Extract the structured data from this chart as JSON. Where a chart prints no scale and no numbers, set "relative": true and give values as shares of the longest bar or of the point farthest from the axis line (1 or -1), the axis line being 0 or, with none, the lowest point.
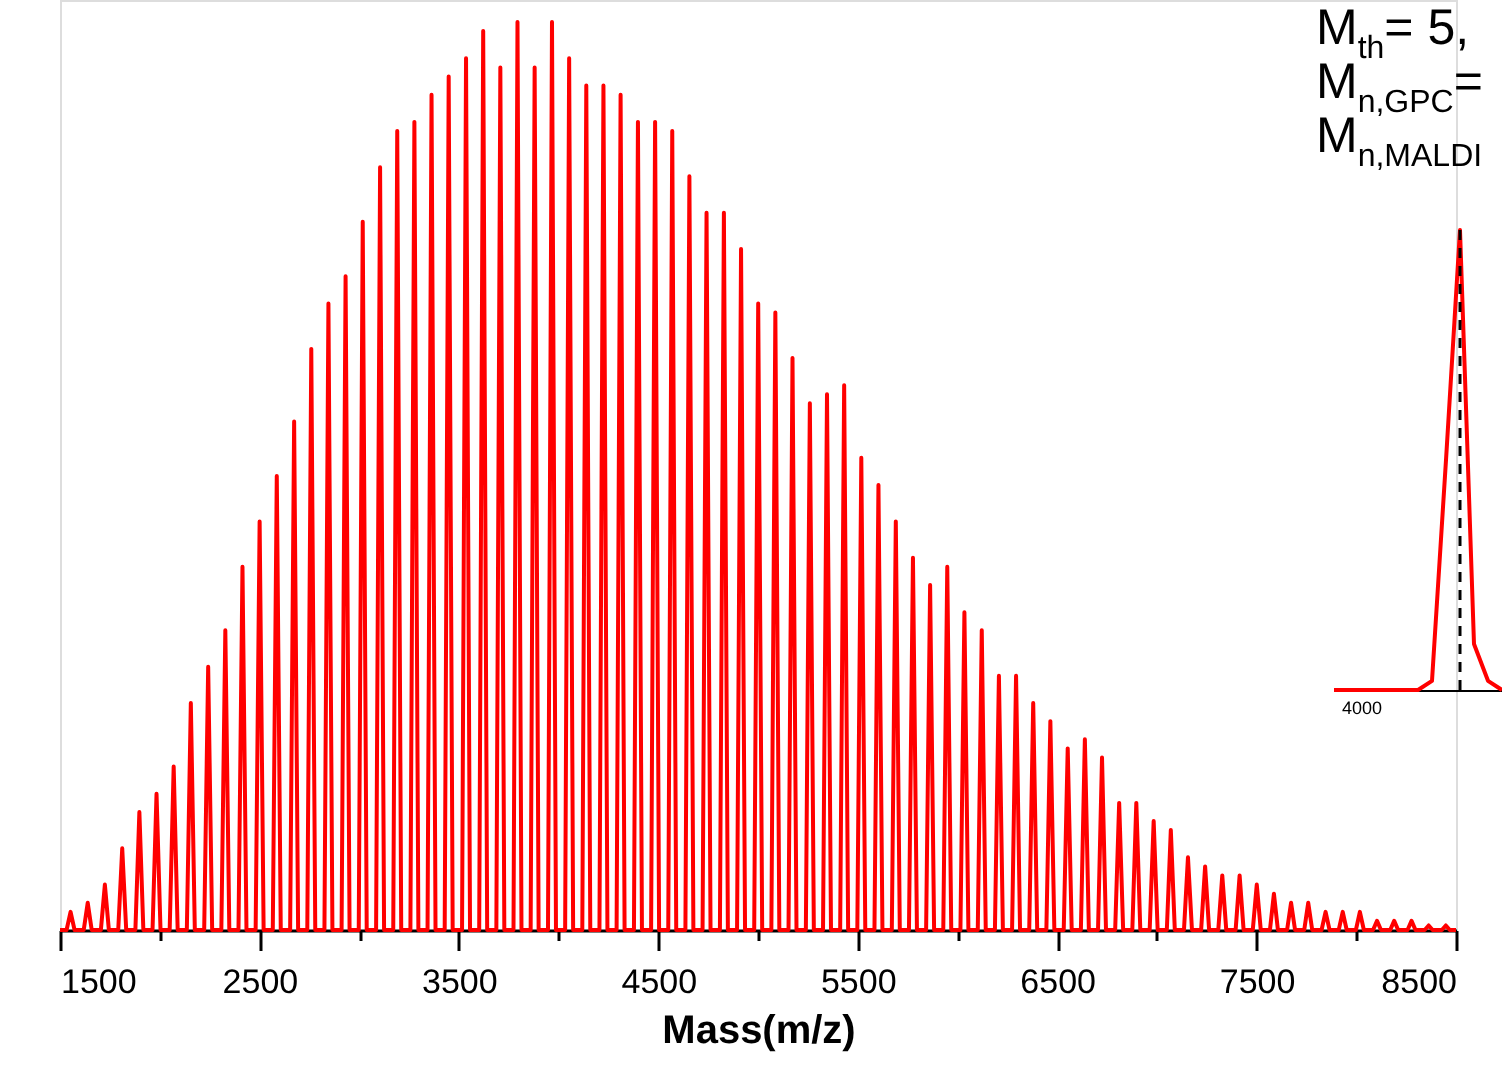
{
  "chart_data": [
    {
      "type": "line",
      "relative": true,
      "color": "#ff0000",
      "xlabel": "Mass(m/z)",
      "grid": false,
      "xlim": [
        1500,
        8500
      ],
      "xticks": [
        1500,
        {
          "value": 2000,
          "label": null
        },
        2500,
        {
          "value": 3000,
          "label": null
        },
        3500,
        {
          "value": 4000,
          "label": null
        },
        4500,
        {
          "value": 5000,
          "label": null
        },
        5500,
        {
          "value": 6000,
          "label": null
        },
        6500,
        {
          "value": 7000,
          "label": null
        },
        7500,
        {
          "value": 8000,
          "label": null
        },
        8500
      ],
      "annotations": [
        "M$_{th}$= 5,",
        "M$_{n,GPC}$=",
        "M$_{n,MALDI}$"
      ],
      "x": [
        1500,
        1533,
        1553,
        1573,
        1619,
        1639,
        1659,
        1705,
        1725,
        1745,
        1792,
        1812,
        1832,
        1878,
        1898,
        1918,
        1964,
        1984,
        2004,
        2050,
        2070,
        2090,
        2136,
        2156,
        2176,
        2223,
        2243,
        2263,
        2309,
        2329,
        2349,
        2395,
        2415,
        2435,
        2481,
        2501,
        2521,
        2567,
        2587,
        2607,
        2654,
        2674,
        2694,
        2740,
        2760,
        2780,
        2826,
        2846,
        2866,
        2912,
        2932,
        2952,
        2998,
        3018,
        3038,
        3085,
        3105,
        3125,
        3171,
        3191,
        3211,
        3257,
        3277,
        3297,
        3343,
        3363,
        3383,
        3429,
        3449,
        3469,
        3516,
        3536,
        3556,
        3602,
        3622,
        3642,
        3688,
        3708,
        3728,
        3774,
        3794,
        3814,
        3860,
        3880,
        3900,
        3947,
        3967,
        3987,
        4033,
        4053,
        4073,
        4119,
        4139,
        4159,
        4205,
        4225,
        4245,
        4291,
        4311,
        4331,
        4378,
        4398,
        4418,
        4464,
        4484,
        4504,
        4550,
        4570,
        4590,
        4636,
        4656,
        4676,
        4722,
        4742,
        4762,
        4809,
        4829,
        4849,
        4895,
        4915,
        4935,
        4981,
        5001,
        5021,
        5067,
        5087,
        5107,
        5153,
        5173,
        5193,
        5240,
        5260,
        5280,
        5326,
        5346,
        5366,
        5412,
        5432,
        5452,
        5498,
        5518,
        5538,
        5584,
        5604,
        5624,
        5671,
        5691,
        5711,
        5757,
        5777,
        5797,
        5843,
        5863,
        5883,
        5929,
        5949,
        5969,
        6015,
        6035,
        6055,
        6102,
        6122,
        6142,
        6188,
        6208,
        6228,
        6274,
        6294,
        6314,
        6360,
        6380,
        6400,
        6446,
        6466,
        6486,
        6533,
        6553,
        6573,
        6619,
        6639,
        6659,
        6705,
        6725,
        6745,
        6791,
        6811,
        6831,
        6877,
        6897,
        6917,
        6964,
        6984,
        7004,
        7050,
        7070,
        7090,
        7136,
        7156,
        7176,
        7222,
        7242,
        7262,
        7308,
        7328,
        7348,
        7395,
        7415,
        7435,
        7481,
        7501,
        7521,
        7567,
        7587,
        7607,
        7653,
        7673,
        7693,
        7739,
        7759,
        7779,
        7826,
        7846,
        7866,
        7912,
        7932,
        7952,
        7998,
        8018,
        8038,
        8084,
        8104,
        8124,
        8170,
        8190,
        8210,
        8257,
        8277,
        8297,
        8343,
        8363,
        8383,
        8429,
        8449,
        8469,
        8500
      ],
      "values": [
        0,
        0,
        0.02,
        0,
        0,
        0.03,
        0,
        0,
        0.05,
        0,
        0,
        0.09,
        0,
        0,
        0.13,
        0,
        0,
        0.15,
        0,
        0,
        0.18,
        0,
        0,
        0.25,
        0,
        0,
        0.29,
        0,
        0,
        0.33,
        0,
        0,
        0.4,
        0,
        0,
        0.45,
        0,
        0,
        0.5,
        0,
        0,
        0.56,
        0,
        0,
        0.64,
        0,
        0,
        0.69,
        0,
        0,
        0.72,
        0,
        0,
        0.78,
        0,
        0,
        0.84,
        0,
        0,
        0.88,
        0,
        0,
        0.89,
        0,
        0,
        0.92,
        0,
        0,
        0.94,
        0,
        0,
        0.96,
        0,
        0,
        0.99,
        0,
        0,
        0.95,
        0,
        0,
        1.0,
        0,
        0,
        0.95,
        0,
        0,
        1.0,
        0,
        0,
        0.96,
        0,
        0,
        0.93,
        0,
        0,
        0.93,
        0,
        0,
        0.92,
        0,
        0,
        0.89,
        0,
        0,
        0.89,
        0,
        0,
        0.88,
        0,
        0,
        0.83,
        0,
        0,
        0.79,
        0,
        0,
        0.79,
        0,
        0,
        0.75,
        0,
        0,
        0.69,
        0,
        0,
        0.68,
        0,
        0,
        0.63,
        0,
        0,
        0.58,
        0,
        0,
        0.59,
        0,
        0,
        0.6,
        0,
        0,
        0.52,
        0,
        0,
        0.49,
        0,
        0,
        0.45,
        0,
        0,
        0.41,
        0,
        0,
        0.38,
        0,
        0,
        0.4,
        0,
        0,
        0.35,
        0,
        0,
        0.33,
        0,
        0,
        0.28,
        0,
        0,
        0.28,
        0,
        0,
        0.25,
        0,
        0,
        0.23,
        0,
        0,
        0.2,
        0,
        0,
        0.21,
        0,
        0,
        0.19,
        0,
        0,
        0.14,
        0,
        0,
        0.14,
        0,
        0,
        0.12,
        0,
        0,
        0.11,
        0,
        0,
        0.08,
        0,
        0,
        0.07,
        0,
        0,
        0.06,
        0,
        0,
        0.06,
        0,
        0,
        0.05,
        0,
        0,
        0.04,
        0,
        0,
        0.03,
        0,
        0,
        0.03,
        0,
        0,
        0.02,
        0,
        0,
        0.02,
        0,
        0,
        0.02,
        0,
        0,
        0.01,
        0,
        0,
        0.01,
        0,
        0,
        0.01,
        0,
        0,
        0.005,
        0,
        0,
        0.005,
        0,
        0
      ]
    },
    {
      "type": "line",
      "relative": true,
      "color": "#ff0000",
      "grid": false,
      "categories": [
        null,
        null,
        null,
        null,
        null,
        null,
        null,
        null,
        null,
        null,
        null,
        null,
        null
      ],
      "values": [
        0,
        0,
        0,
        0,
        0,
        0,
        0,
        0.02,
        0.5,
        1,
        0.1,
        0.02,
        0
      ],
      "annotations": [
        "4000"
      ]
    }
  ]
}
